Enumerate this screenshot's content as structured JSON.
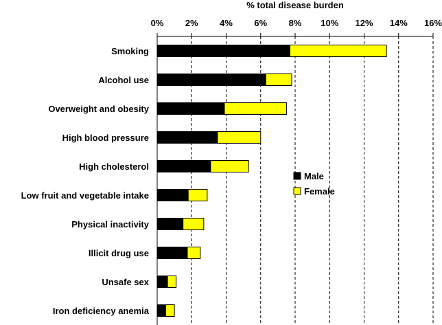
{
  "chart_data": {
    "type": "bar",
    "orientation": "horizontal",
    "stacked": true,
    "title": "% total disease burden",
    "categories": [
      "Smoking",
      "Alcohol use",
      "Overweight and obesity",
      "High blood pressure",
      "High cholesterol",
      "Low fruit and vegetable intake",
      "Physical inactivity",
      "Illicit drug use",
      "Unsafe sex",
      "Iron deficiency anemia"
    ],
    "series": [
      {
        "name": "Male",
        "color": "#000000",
        "values": [
          7.7,
          6.3,
          3.9,
          3.5,
          3.1,
          1.8,
          1.5,
          1.75,
          0.6,
          0.5
        ]
      },
      {
        "name": "Female",
        "color": "#ffff00",
        "values": [
          5.6,
          1.5,
          3.6,
          2.5,
          2.2,
          1.1,
          1.2,
          0.75,
          0.5,
          0.5
        ]
      }
    ],
    "xlim": [
      0,
      16
    ],
    "xticks": [
      "0%",
      "2%",
      "4%",
      "6%",
      "8%",
      "10%",
      "12%",
      "14%",
      "16%"
    ],
    "xtick_values": [
      0,
      2,
      4,
      6,
      8,
      10,
      12,
      14,
      16
    ],
    "grid": "vertical-dashed",
    "axis_position": "top",
    "legend": {
      "position": "right-middle",
      "entries": [
        "Male",
        "Female"
      ]
    }
  }
}
